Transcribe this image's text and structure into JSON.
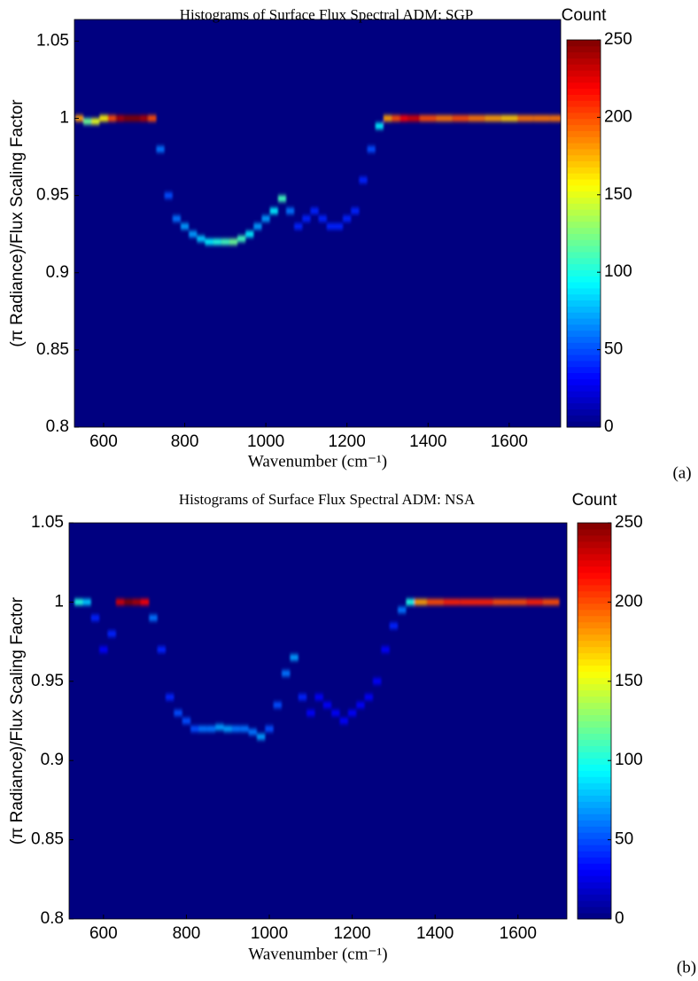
{
  "chart_data": [
    {
      "type": "heatmap",
      "title": "Histograms of Surface Flux Spectral ADM: SGP",
      "xlabel": "Wavenumber (cm⁻¹)",
      "ylabel": "(π Radiance)/Flux Scaling Factor",
      "colorbar_label": "Count",
      "panel_label": "(a)",
      "colormap": "jet",
      "xlim": [
        528,
        1727
      ],
      "ylim": [
        0.8,
        1.064
      ],
      "xticks": [
        600,
        800,
        1000,
        1200,
        1400,
        1600
      ],
      "yticks": [
        0.8,
        0.85,
        0.9,
        0.95,
        1,
        1.05
      ],
      "clim": [
        0,
        250
      ],
      "cticks": [
        0,
        50,
        100,
        150,
        200,
        250
      ],
      "x": [
        540,
        560,
        580,
        600,
        620,
        640,
        660,
        680,
        700,
        720,
        740,
        760,
        780,
        800,
        820,
        840,
        860,
        880,
        900,
        920,
        940,
        960,
        980,
        1000,
        1020,
        1040,
        1060,
        1080,
        1100,
        1120,
        1140,
        1160,
        1180,
        1200,
        1220,
        1240,
        1260,
        1280,
        1300,
        1320,
        1340,
        1360,
        1400,
        1440,
        1480,
        1520,
        1560,
        1600,
        1640,
        1680,
        1720
      ],
      "y": [
        1.0,
        0.998,
        0.998,
        1.0,
        1.0,
        1.0,
        1.0,
        1.0,
        1.0,
        1.0,
        0.98,
        0.95,
        0.935,
        0.93,
        0.925,
        0.922,
        0.92,
        0.92,
        0.92,
        0.92,
        0.922,
        0.925,
        0.93,
        0.935,
        0.94,
        0.948,
        0.94,
        0.93,
        0.935,
        0.94,
        0.935,
        0.93,
        0.93,
        0.935,
        0.94,
        0.96,
        0.98,
        0.995,
        1.0,
        1.0,
        1.0,
        1.0,
        1.0,
        1.0,
        1.0,
        1.0,
        1.0,
        1.0,
        1.0,
        1.0,
        1.0
      ],
      "values": [
        180,
        120,
        150,
        160,
        200,
        240,
        250,
        250,
        240,
        200,
        60,
        50,
        60,
        70,
        70,
        80,
        90,
        100,
        110,
        120,
        110,
        90,
        70,
        70,
        90,
        110,
        60,
        40,
        40,
        40,
        40,
        40,
        40,
        40,
        40,
        40,
        50,
        90,
        180,
        200,
        220,
        230,
        200,
        190,
        200,
        190,
        180,
        170,
        190,
        190,
        190
      ]
    },
    {
      "type": "heatmap",
      "title": "Histograms of Surface Flux Spectral ADM: NSA",
      "xlabel": "Wavenumber (cm⁻¹)",
      "ylabel": "(π Radiance)/Flux Scaling Factor",
      "colorbar_label": "Count",
      "panel_label": "(b)",
      "colormap": "jet",
      "xlim": [
        517,
        1718
      ],
      "ylim": [
        0.8,
        1.05
      ],
      "xticks": [
        600,
        800,
        1000,
        1200,
        1400,
        1600
      ],
      "yticks": [
        0.8,
        0.85,
        0.9,
        0.95,
        1,
        1.05
      ],
      "clim": [
        0,
        250
      ],
      "cticks": [
        0,
        50,
        100,
        150,
        200,
        250
      ],
      "x": [
        540,
        560,
        580,
        600,
        620,
        640,
        660,
        680,
        700,
        720,
        740,
        760,
        780,
        800,
        820,
        840,
        860,
        880,
        900,
        920,
        940,
        960,
        980,
        1000,
        1020,
        1040,
        1060,
        1080,
        1100,
        1120,
        1140,
        1160,
        1180,
        1200,
        1220,
        1240,
        1260,
        1280,
        1300,
        1320,
        1340,
        1360,
        1400,
        1440,
        1480,
        1520,
        1560,
        1600,
        1640,
        1680
      ],
      "y": [
        1.0,
        1.0,
        0.99,
        0.97,
        0.98,
        1.0,
        1.0,
        1.0,
        1.0,
        0.99,
        0.97,
        0.94,
        0.93,
        0.925,
        0.92,
        0.92,
        0.92,
        0.921,
        0.92,
        0.92,
        0.92,
        0.918,
        0.915,
        0.92,
        0.935,
        0.955,
        0.965,
        0.94,
        0.93,
        0.94,
        0.935,
        0.93,
        0.925,
        0.93,
        0.935,
        0.94,
        0.95,
        0.97,
        0.985,
        0.995,
        1.0,
        1.0,
        1.0,
        1.0,
        1.0,
        1.0,
        1.0,
        1.0,
        1.0,
        1.0
      ],
      "values": [
        100,
        80,
        40,
        30,
        40,
        230,
        250,
        240,
        220,
        60,
        40,
        40,
        50,
        50,
        50,
        60,
        60,
        70,
        70,
        60,
        60,
        60,
        70,
        50,
        50,
        60,
        70,
        40,
        30,
        30,
        30,
        30,
        30,
        30,
        30,
        30,
        30,
        30,
        40,
        60,
        100,
        180,
        200,
        210,
        210,
        210,
        200,
        200,
        210,
        200
      ]
    }
  ]
}
